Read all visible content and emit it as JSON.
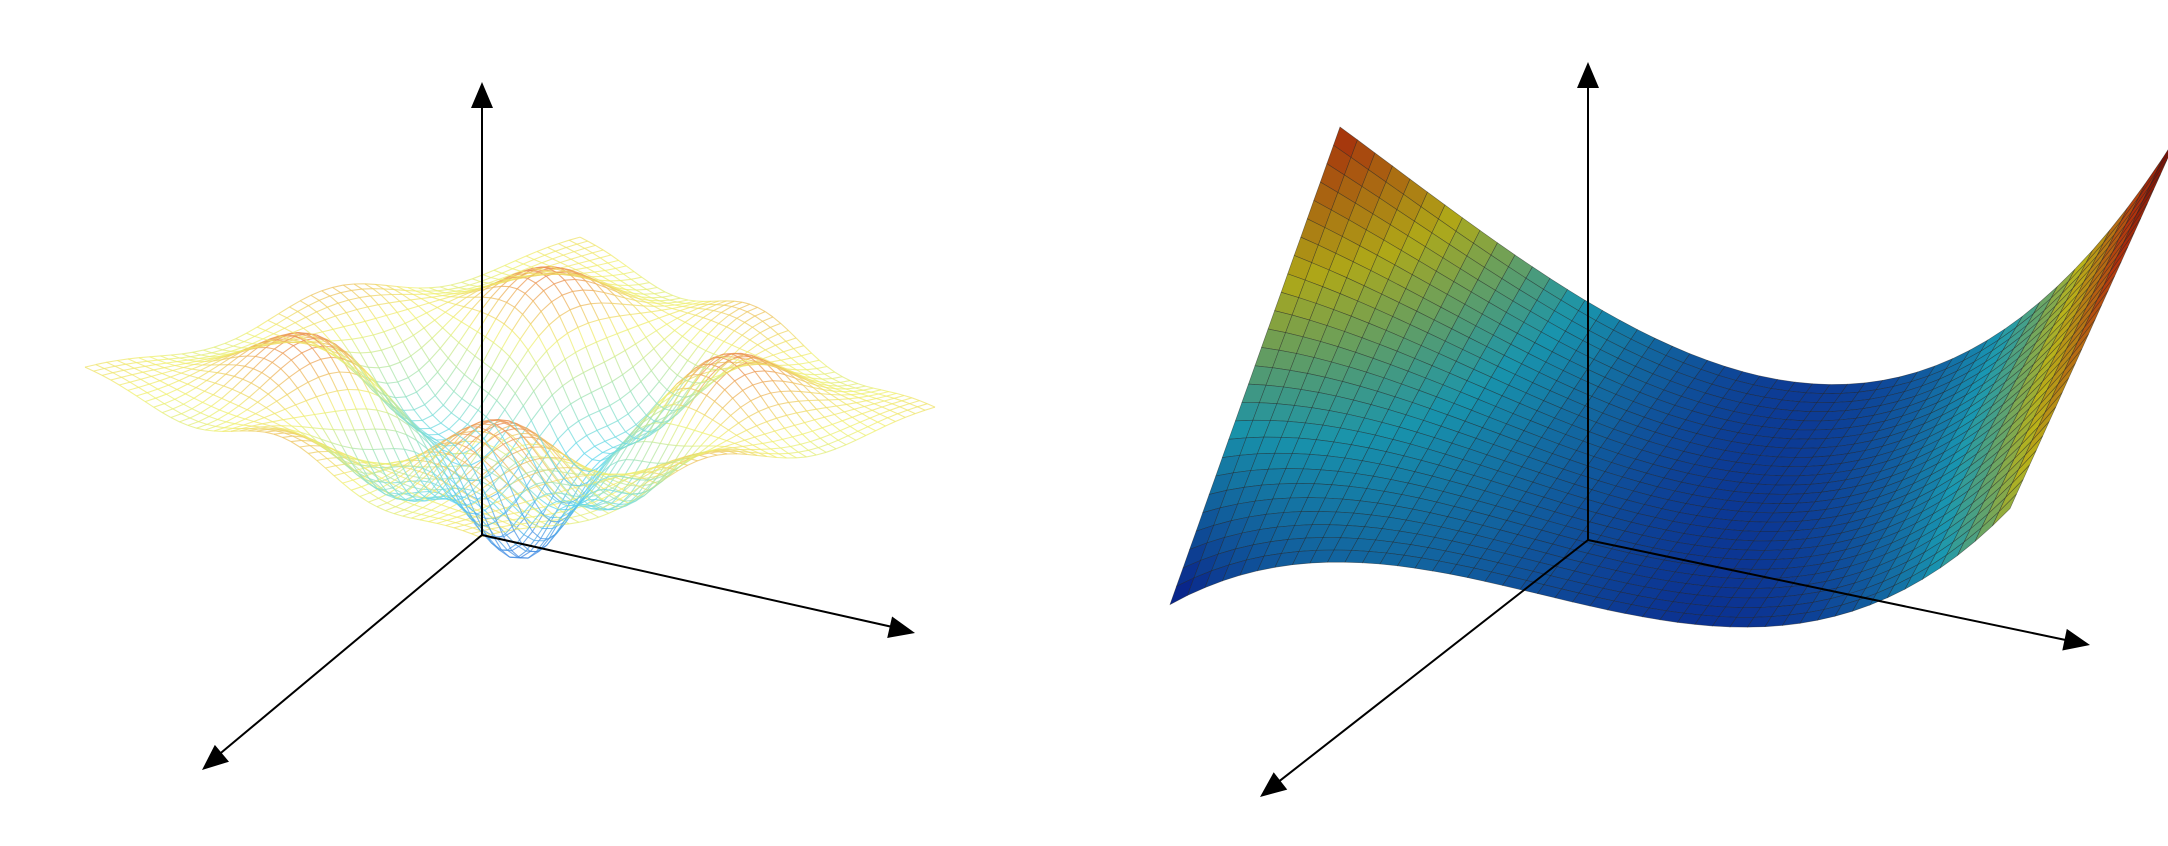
{
  "figure": {
    "panels": [
      {
        "id": "left",
        "surface": {
          "style": "wireframe-mesh",
          "shape": "radial ripple: central well with concentric ridges",
          "colormap": "jet (pale)",
          "colors": {
            "low": "#3050d8",
            "mid_low": "#60d8f0",
            "mid": "#f0f070",
            "high": "#e85040",
            "peak": "#8a6080"
          }
        },
        "axes": [
          "x-axis-arrow",
          "y-axis-arrow",
          "z-axis-arrow"
        ]
      },
      {
        "id": "right",
        "surface": {
          "style": "solid-faceted-mesh",
          "shape": "cubic in x, parabolic in y (S-shaped saddle)",
          "colormap": "jet",
          "colors": {
            "low": "#0a20b0",
            "mid_low": "#20c0e0",
            "mid": "#e8e020",
            "high": "#e04010",
            "peak": "#7a0000"
          },
          "edge_color": "#202020"
        },
        "axes": [
          "x-axis-arrow",
          "y-axis-arrow",
          "z-axis-arrow"
        ]
      }
    ],
    "axis_color": "#000000"
  }
}
